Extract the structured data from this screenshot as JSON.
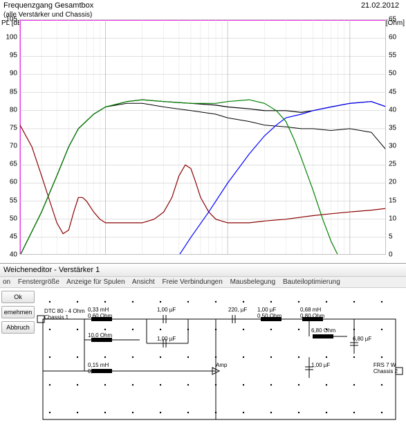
{
  "chart": {
    "title": "Frequenzgang Gesamtbox",
    "subtitle": "(alle Verstärker und Chassis)",
    "date": "21.02.2012",
    "y_left_label": "PL [dB]",
    "y_right_label": "Z [Ohm]",
    "y_left": {
      "min": 40,
      "max": 105,
      "step": 5
    },
    "y_right": {
      "min": 0,
      "max": 65,
      "step": 5
    },
    "x_log": {
      "min": 20,
      "max": 20000
    },
    "background_color": "#ffffff",
    "grid_major_color": "#c0c0c0",
    "grid_minor_color": "#e0e0e0",
    "border_color": "#ff00ff",
    "series": {
      "spl_total": {
        "color": "#000000",
        "width": 1.2,
        "points": [
          [
            20,
            40
          ],
          [
            30,
            52
          ],
          [
            40,
            62
          ],
          [
            50,
            70
          ],
          [
            60,
            75
          ],
          [
            80,
            79
          ],
          [
            100,
            81
          ],
          [
            150,
            82.5
          ],
          [
            200,
            83
          ],
          [
            300,
            82.5
          ],
          [
            500,
            82
          ],
          [
            800,
            81.5
          ],
          [
            1000,
            81
          ],
          [
            1500,
            80.5
          ],
          [
            2000,
            80
          ],
          [
            3000,
            80
          ],
          [
            4000,
            79.5
          ],
          [
            5000,
            80
          ],
          [
            7000,
            81
          ],
          [
            10000,
            82
          ],
          [
            15000,
            82.5
          ],
          [
            20000,
            81
          ]
        ]
      },
      "spl_sum2": {
        "color": "#000000",
        "width": 1.0,
        "points": [
          [
            20,
            40
          ],
          [
            30,
            52
          ],
          [
            40,
            62
          ],
          [
            50,
            70
          ],
          [
            60,
            75
          ],
          [
            80,
            79
          ],
          [
            100,
            81
          ],
          [
            150,
            82
          ],
          [
            200,
            82
          ],
          [
            300,
            81
          ],
          [
            500,
            80
          ],
          [
            800,
            79
          ],
          [
            1000,
            78
          ],
          [
            1500,
            77
          ],
          [
            2000,
            76
          ],
          [
            3000,
            75.5
          ],
          [
            4000,
            75
          ],
          [
            5000,
            75
          ],
          [
            7000,
            74.5
          ],
          [
            10000,
            75
          ],
          [
            15000,
            74
          ],
          [
            20000,
            69
          ]
        ]
      },
      "impedance": {
        "color": "#8b0000",
        "width": 1.2,
        "points": [
          [
            20,
            76
          ],
          [
            25,
            70
          ],
          [
            30,
            62
          ],
          [
            35,
            55
          ],
          [
            40,
            49
          ],
          [
            45,
            46
          ],
          [
            50,
            47
          ],
          [
            55,
            52
          ],
          [
            60,
            56
          ],
          [
            65,
            56
          ],
          [
            70,
            55
          ],
          [
            80,
            52
          ],
          [
            90,
            50
          ],
          [
            100,
            49
          ],
          [
            150,
            49
          ],
          [
            200,
            49
          ],
          [
            250,
            50
          ],
          [
            300,
            52
          ],
          [
            350,
            56
          ],
          [
            400,
            62
          ],
          [
            450,
            65
          ],
          [
            500,
            64
          ],
          [
            550,
            60
          ],
          [
            600,
            56
          ],
          [
            700,
            52
          ],
          [
            800,
            50
          ],
          [
            1000,
            49
          ],
          [
            1500,
            49
          ],
          [
            2000,
            49.5
          ],
          [
            3000,
            50
          ],
          [
            5000,
            51
          ],
          [
            7000,
            51.5
          ],
          [
            10000,
            52
          ],
          [
            15000,
            52.5
          ],
          [
            20000,
            53
          ]
        ]
      },
      "hp_driver": {
        "color": "#0000ff",
        "width": 1.2,
        "points": [
          [
            400,
            40
          ],
          [
            500,
            45
          ],
          [
            700,
            52
          ],
          [
            1000,
            60
          ],
          [
            1500,
            68
          ],
          [
            2000,
            73
          ],
          [
            2500,
            76
          ],
          [
            3000,
            78
          ],
          [
            4000,
            79
          ],
          [
            5000,
            80
          ],
          [
            7000,
            81
          ],
          [
            10000,
            82
          ],
          [
            15000,
            82.5
          ],
          [
            20000,
            81
          ]
        ]
      },
      "lp_driver": {
        "color": "#008000",
        "width": 1.2,
        "points": [
          [
            20,
            40
          ],
          [
            30,
            52
          ],
          [
            40,
            62
          ],
          [
            50,
            70
          ],
          [
            60,
            75
          ],
          [
            80,
            79
          ],
          [
            100,
            81
          ],
          [
            150,
            82.5
          ],
          [
            200,
            83
          ],
          [
            300,
            82.5
          ],
          [
            500,
            82
          ],
          [
            800,
            82
          ],
          [
            1000,
            82.5
          ],
          [
            1500,
            83
          ],
          [
            2000,
            82
          ],
          [
            2500,
            80
          ],
          [
            3000,
            77
          ],
          [
            3500,
            72
          ],
          [
            4000,
            67
          ],
          [
            5000,
            58
          ],
          [
            6000,
            50
          ],
          [
            7000,
            44
          ],
          [
            8000,
            40
          ]
        ]
      }
    }
  },
  "editor": {
    "title": "Weicheneditor - Verstärker 1",
    "menu": [
      "on",
      "Fenstergröße",
      "Anzeige für Spulen",
      "Ansicht",
      "Freie Verbindungen",
      "Mausbelegung",
      "Bauteiloptimierung"
    ],
    "buttons": {
      "ok": "Ok",
      "apply": "ernehmen",
      "cancel": "Abbruch"
    },
    "components": {
      "chassis1": "DTC 80 - 4 Ohm\nChassis 1",
      "chassis2": "FRS 7 W\nChassis 2",
      "L1": "0,33 mH\n0,60 Ohm",
      "L2": "0,15 mH\n0,40 Ohm",
      "L3": "0,68 mH\n0,80 Ohm",
      "R1": "10,0 Ohm",
      "R2": "6,80 Ohm",
      "C1": "1,00 µF",
      "C2": "1,00 µF",
      "C3": "220, µF",
      "C4": "1,00 µF\n0,50 Ohm",
      "C5": "6,80 µF",
      "C6": "1,00 µF",
      "amp": "Amp"
    },
    "grid_dot_color": "#000000",
    "wire_color": "#000000"
  }
}
